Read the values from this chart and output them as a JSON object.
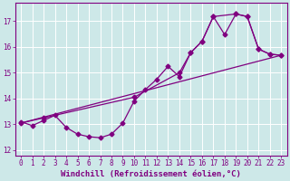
{
  "xlabel": "Windchill (Refroidissement éolien,°C)",
  "bg_color": "#cde8e8",
  "line_color": "#800080",
  "grid_color": "#ffffff",
  "xlim": [
    -0.5,
    23.5
  ],
  "ylim": [
    11.8,
    17.7
  ],
  "xticks": [
    0,
    1,
    2,
    3,
    4,
    5,
    6,
    7,
    8,
    9,
    10,
    11,
    12,
    13,
    14,
    15,
    16,
    17,
    18,
    19,
    20,
    21,
    22,
    23
  ],
  "yticks": [
    12,
    13,
    14,
    15,
    16,
    17
  ],
  "series1_x": [
    0,
    1,
    2,
    3,
    4,
    5,
    6,
    7,
    8,
    9,
    10,
    11,
    12,
    13,
    14,
    15,
    16,
    17,
    18,
    19,
    20,
    21,
    22,
    23
  ],
  "series1_y": [
    13.1,
    12.95,
    13.15,
    13.35,
    12.88,
    12.62,
    12.52,
    12.48,
    12.62,
    13.05,
    13.9,
    14.35,
    14.75,
    15.25,
    14.85,
    15.78,
    16.22,
    17.18,
    16.48,
    17.28,
    17.18,
    15.92,
    15.72,
    15.68
  ],
  "series2_x": [
    0,
    23
  ],
  "series2_y": [
    13.05,
    15.68
  ],
  "series3_x": [
    0,
    2,
    10,
    14,
    15,
    16,
    17,
    19,
    20,
    21,
    22,
    23
  ],
  "series3_y": [
    13.05,
    13.25,
    14.05,
    15.0,
    15.78,
    16.22,
    17.18,
    17.28,
    17.18,
    15.92,
    15.72,
    15.68
  ],
  "marker": "D",
  "marker_size": 2.5,
  "line_width": 0.9,
  "font_size_label": 6.5,
  "font_size_tick": 5.5
}
